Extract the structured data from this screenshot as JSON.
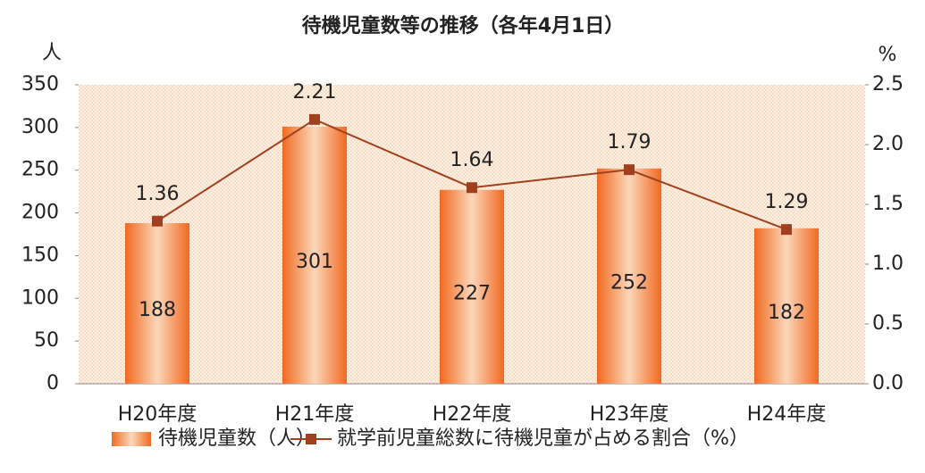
{
  "chart_data": {
    "type": "bar_line",
    "title": "待機児童数等の推移（各年4月1日）",
    "y_label": "人",
    "y2_label": "%",
    "categories": [
      "H20年度",
      "H21年度",
      "H22年度",
      "H23年度",
      "H24年度"
    ],
    "series": [
      {
        "name": "待機児童数（人）",
        "color": "#f06a20",
        "type": "bar",
        "values": [
          188,
          301,
          227,
          252,
          182
        ]
      },
      {
        "name": "就学前児童総数に待機児童が占める割合（%）",
        "color": "#a0401f",
        "type": "line",
        "axis": "y2",
        "values": [
          1.36,
          2.21,
          1.64,
          1.79,
          1.29
        ]
      }
    ],
    "ylim": [
      0,
      350
    ],
    "yticks": [
      0,
      50,
      100,
      150,
      200,
      250,
      300,
      350
    ],
    "y2lim": [
      0,
      2.5
    ],
    "y2ticks": [
      {
        "value": 0,
        "label": "0.0"
      },
      0.5,
      {
        "value": 1,
        "label": "1.0"
      },
      1.5,
      {
        "value": 2,
        "label": "2.0"
      },
      2.5
    ]
  }
}
